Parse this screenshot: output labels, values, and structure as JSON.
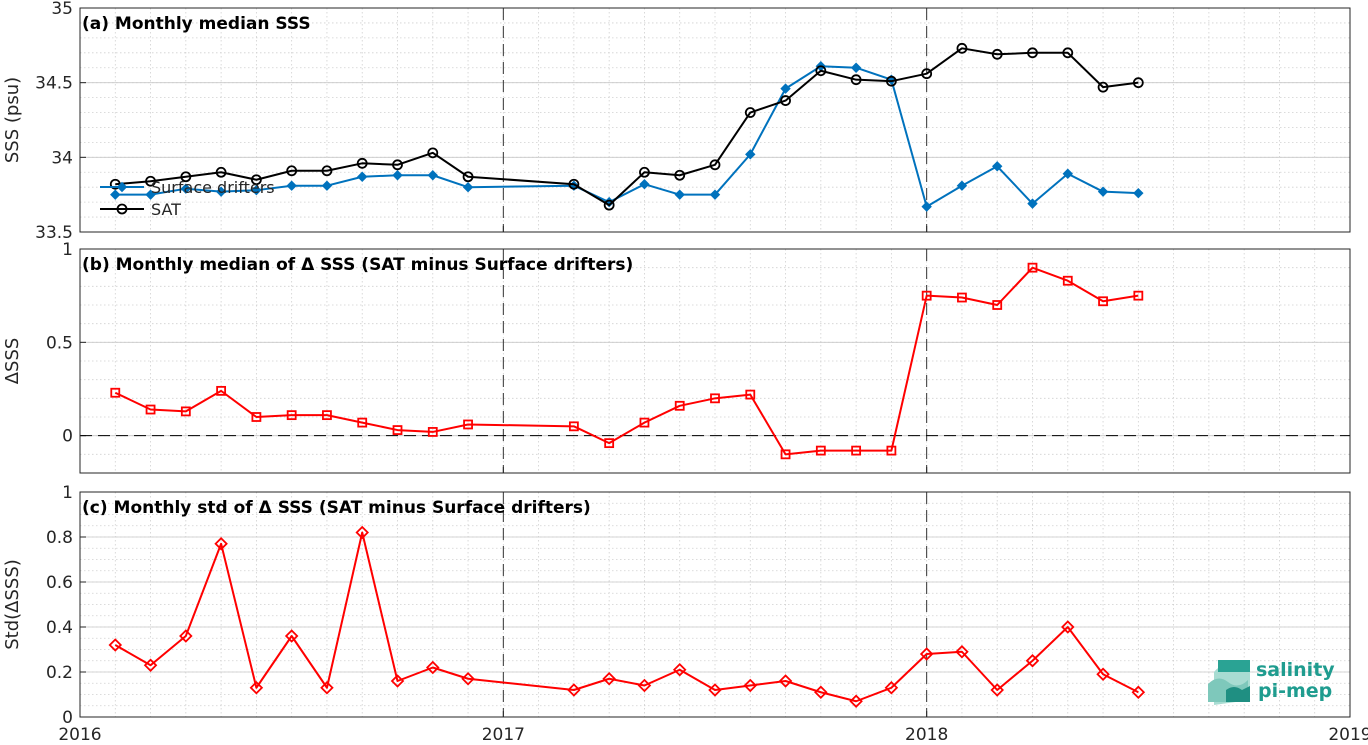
{
  "chart_data": [
    {
      "type": "line",
      "title": "(a) Monthly median SSS",
      "ylabel": "SSS (psu)",
      "xlim": [
        "2016",
        "2019"
      ],
      "ylim": [
        33.5,
        35
      ],
      "yticks": [
        "33.5",
        "34",
        "34.5",
        "35"
      ],
      "legend": {
        "placement": "bottom-left",
        "entries": [
          "Surface drifters",
          "SAT"
        ]
      },
      "x": [
        "2016-02",
        "2016-03",
        "2016-04",
        "2016-05",
        "2016-06",
        "2016-07",
        "2016-08",
        "2016-09",
        "2016-10",
        "2016-11",
        "2016-12",
        "2017-03",
        "2017-04",
        "2017-05",
        "2017-06",
        "2017-07",
        "2017-08",
        "2017-09",
        "2017-10",
        "2017-11",
        "2017-12",
        "2018-01",
        "2018-02",
        "2018-03",
        "2018-04",
        "2018-05",
        "2018-06",
        "2018-07"
      ],
      "series": [
        {
          "name": "Surface drifters",
          "color": "#0072BD",
          "marker": "diamond",
          "values": [
            33.75,
            33.75,
            33.79,
            33.77,
            33.78,
            33.81,
            33.81,
            33.87,
            33.88,
            33.88,
            33.8,
            33.81,
            33.7,
            33.82,
            33.75,
            33.75,
            34.02,
            34.46,
            34.61,
            34.6,
            34.52,
            33.67,
            33.81,
            33.94,
            33.69,
            33.89,
            33.77,
            33.76
          ]
        },
        {
          "name": "SAT",
          "color": "#000000",
          "marker": "circle",
          "values": [
            33.82,
            33.84,
            33.87,
            33.9,
            33.85,
            33.91,
            33.91,
            33.96,
            33.95,
            34.03,
            33.87,
            33.82,
            33.68,
            33.9,
            33.88,
            33.95,
            34.3,
            34.38,
            34.58,
            34.52,
            34.51,
            34.56,
            34.73,
            34.69,
            34.7,
            34.7,
            34.47,
            34.5
          ]
        }
      ]
    },
    {
      "type": "line",
      "title": "(b) Monthly median of Δ SSS (SAT minus Surface drifters)",
      "ylabel": "ΔSSS",
      "xlim": [
        "2016",
        "2019"
      ],
      "ylim": [
        -0.2,
        1
      ],
      "yticks": [
        "0",
        "0.5",
        "1"
      ],
      "x": [
        "2016-02",
        "2016-03",
        "2016-04",
        "2016-05",
        "2016-06",
        "2016-07",
        "2016-08",
        "2016-09",
        "2016-10",
        "2016-11",
        "2016-12",
        "2017-03",
        "2017-04",
        "2017-05",
        "2017-06",
        "2017-07",
        "2017-08",
        "2017-09",
        "2017-10",
        "2017-11",
        "2017-12",
        "2018-01",
        "2018-02",
        "2018-03",
        "2018-04",
        "2018-05",
        "2018-06",
        "2018-07"
      ],
      "series": [
        {
          "name": "",
          "color": "#ff0000",
          "marker": "square",
          "values": [
            0.23,
            0.14,
            0.13,
            0.24,
            0.1,
            0.11,
            0.11,
            0.07,
            0.03,
            0.02,
            0.06,
            0.05,
            -0.04,
            0.07,
            0.16,
            0.2,
            0.22,
            -0.1,
            -0.08,
            -0.08,
            -0.08,
            0.75,
            0.74,
            0.7,
            0.9,
            0.83,
            0.72,
            0.75
          ]
        }
      ]
    },
    {
      "type": "line",
      "title": "(c) Monthly std of Δ SSS (SAT minus Surface drifters)",
      "ylabel": "Std(ΔSSS)",
      "xlim": [
        "2016",
        "2019"
      ],
      "ylim": [
        0,
        1
      ],
      "yticks": [
        "0",
        "0.2",
        "0.4",
        "0.6",
        "0.8",
        "1"
      ],
      "xticks": [
        "2016",
        "2017",
        "2018",
        "2019"
      ],
      "x": [
        "2016-02",
        "2016-03",
        "2016-04",
        "2016-05",
        "2016-06",
        "2016-07",
        "2016-08",
        "2016-09",
        "2016-10",
        "2016-11",
        "2016-12",
        "2017-03",
        "2017-04",
        "2017-05",
        "2017-06",
        "2017-07",
        "2017-08",
        "2017-09",
        "2017-10",
        "2017-11",
        "2017-12",
        "2018-01",
        "2018-02",
        "2018-03",
        "2018-04",
        "2018-05",
        "2018-06",
        "2018-07"
      ],
      "series": [
        {
          "name": "",
          "color": "#ff0000",
          "marker": "diamond",
          "values": [
            0.32,
            0.23,
            0.36,
            0.77,
            0.13,
            0.36,
            0.13,
            0.82,
            0.16,
            0.22,
            0.17,
            0.12,
            0.17,
            0.14,
            0.21,
            0.12,
            0.14,
            0.16,
            0.11,
            0.07,
            0.13,
            0.28,
            0.29,
            0.12,
            0.25,
            0.4,
            0.19,
            0.11
          ]
        }
      ]
    }
  ],
  "logo": {
    "line1": "salinity",
    "line2": "pi-mep",
    "color": "#1f9c8f"
  }
}
